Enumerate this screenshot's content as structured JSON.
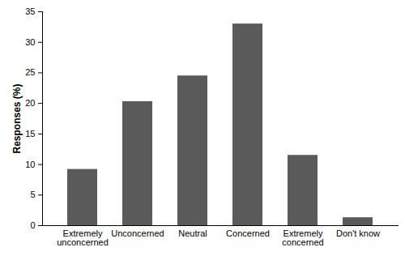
{
  "chart_data": {
    "type": "bar",
    "categories": [
      "Extremely unconcerned",
      "Unconcerned",
      "Neutral",
      "Concerned",
      "Extremely concerned",
      "Don't know"
    ],
    "values": [
      9.2,
      20.3,
      24.5,
      33,
      11.5,
      1.3
    ],
    "color": "#5a5a5a",
    "ylabel": "Responses (%)",
    "ylim": [
      0,
      35
    ],
    "yticks": [
      0,
      5,
      10,
      15,
      20,
      25,
      30,
      35
    ],
    "grid": false
  }
}
